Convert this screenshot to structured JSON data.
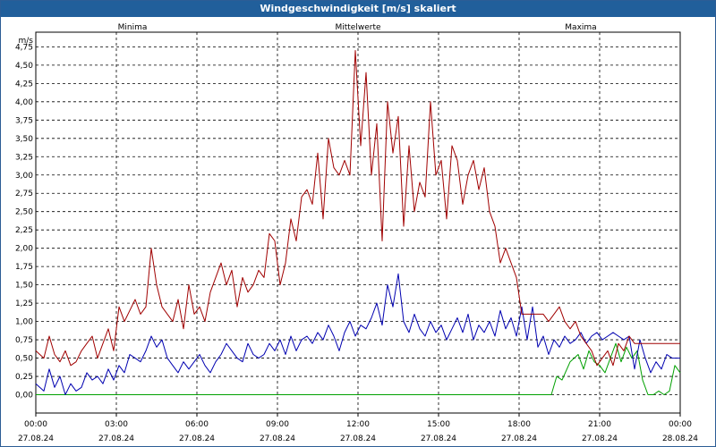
{
  "title": "Windgeschwindigkeit [m/s] skaliert",
  "colors": {
    "title_bg": "#215f9b",
    "minima": "#00a000",
    "mittelwerte": "#0000b0",
    "maxima": "#a00000",
    "grid": "#000000"
  },
  "chart_data": {
    "type": "line",
    "title": "Windgeschwindigkeit [m/s] skaliert",
    "ylabel": "m/s",
    "xlabel": "",
    "ylim": [
      -0.25,
      4.95
    ],
    "xlim_hours": [
      0,
      24
    ],
    "grid": true,
    "legend_placement": "top",
    "y_ticks": [
      "0,00",
      "0,25",
      "0,50",
      "0,75",
      "1,00",
      "1,25",
      "1,50",
      "1,75",
      "2,00",
      "2,25",
      "2,50",
      "2,75",
      "3,00",
      "3,25",
      "3,50",
      "3,75",
      "4,00",
      "4,25",
      "4,50",
      "4,75"
    ],
    "x_ticks": [
      {
        "time": "00:00",
        "date": "27.08.24"
      },
      {
        "time": "03:00",
        "date": "27.08.24"
      },
      {
        "time": "06:00",
        "date": "27.08.24"
      },
      {
        "time": "09:00",
        "date": "27.08.24"
      },
      {
        "time": "12:00",
        "date": "27.08.24"
      },
      {
        "time": "15:00",
        "date": "27.08.24"
      },
      {
        "time": "18:00",
        "date": "27.08.24"
      },
      {
        "time": "21:00",
        "date": "27.08.24"
      },
      {
        "time": "00:00",
        "date": "28.08.24"
      }
    ],
    "x_tick_hours": [
      0,
      3,
      6,
      9,
      12,
      15,
      18,
      21,
      24
    ],
    "series": [
      {
        "name": "Minima",
        "color": "#00a000",
        "x": [
          0,
          19.2,
          19.4,
          19.6,
          19.9,
          20.2,
          20.4,
          20.6,
          20.8,
          21.0,
          21.2,
          21.4,
          21.6,
          21.8,
          22.0,
          22.2,
          22.4,
          22.6,
          22.8,
          23.0,
          23.2,
          23.4,
          23.6,
          23.8,
          24.0
        ],
        "y": [
          0,
          0,
          0.25,
          0.2,
          0.45,
          0.55,
          0.35,
          0.6,
          0.45,
          0.4,
          0.3,
          0.5,
          0.7,
          0.45,
          0.65,
          0.5,
          0.6,
          0.2,
          0.0,
          0.0,
          0.05,
          0.0,
          0.05,
          0.4,
          0.3
        ]
      },
      {
        "name": "Mittelwerte",
        "color": "#0000b0",
        "x": [
          0,
          0.3,
          0.5,
          0.7,
          0.9,
          1.1,
          1.3,
          1.5,
          1.7,
          1.9,
          2.1,
          2.3,
          2.5,
          2.7,
          2.9,
          3.1,
          3.3,
          3.5,
          3.7,
          3.9,
          4.1,
          4.3,
          4.5,
          4.7,
          4.9,
          5.1,
          5.3,
          5.5,
          5.7,
          5.9,
          6.1,
          6.3,
          6.5,
          6.7,
          6.9,
          7.1,
          7.3,
          7.5,
          7.7,
          7.9,
          8.1,
          8.3,
          8.5,
          8.7,
          8.9,
          9.1,
          9.3,
          9.5,
          9.7,
          9.9,
          10.1,
          10.3,
          10.5,
          10.7,
          10.9,
          11.1,
          11.3,
          11.5,
          11.7,
          11.9,
          12.1,
          12.3,
          12.5,
          12.7,
          12.9,
          13.1,
          13.3,
          13.5,
          13.7,
          13.9,
          14.1,
          14.3,
          14.5,
          14.7,
          14.9,
          15.1,
          15.3,
          15.5,
          15.7,
          15.9,
          16.1,
          16.3,
          16.5,
          16.7,
          16.9,
          17.1,
          17.3,
          17.5,
          17.7,
          17.9,
          18.1,
          18.3,
          18.5,
          18.7,
          18.9,
          19.1,
          19.3,
          19.5,
          19.7,
          19.9,
          20.1,
          20.3,
          20.5,
          20.7,
          20.9,
          21.1,
          21.3,
          21.5,
          21.7,
          21.9,
          22.1,
          22.3,
          22.5,
          22.7,
          22.9,
          23.1,
          23.3,
          23.5,
          23.7,
          23.9,
          24.0
        ],
        "y": [
          0.15,
          0.05,
          0.35,
          0.1,
          0.25,
          0.0,
          0.15,
          0.05,
          0.1,
          0.3,
          0.2,
          0.25,
          0.15,
          0.35,
          0.2,
          0.4,
          0.3,
          0.55,
          0.5,
          0.45,
          0.6,
          0.8,
          0.65,
          0.75,
          0.5,
          0.4,
          0.3,
          0.45,
          0.35,
          0.45,
          0.55,
          0.4,
          0.3,
          0.45,
          0.55,
          0.7,
          0.6,
          0.5,
          0.45,
          0.7,
          0.55,
          0.5,
          0.55,
          0.7,
          0.6,
          0.75,
          0.55,
          0.8,
          0.6,
          0.75,
          0.8,
          0.7,
          0.85,
          0.75,
          0.95,
          0.8,
          0.6,
          0.85,
          1.0,
          0.8,
          0.95,
          0.9,
          1.05,
          1.25,
          0.95,
          1.5,
          1.2,
          1.65,
          1.0,
          0.85,
          1.1,
          0.9,
          0.8,
          1.0,
          0.85,
          0.95,
          0.75,
          0.9,
          1.05,
          0.85,
          1.1,
          0.75,
          0.95,
          0.85,
          1.0,
          0.8,
          1.15,
          0.9,
          1.05,
          0.8,
          1.2,
          0.75,
          1.2,
          0.65,
          0.8,
          0.55,
          0.75,
          0.65,
          0.8,
          0.7,
          0.75,
          0.85,
          0.7,
          0.8,
          0.85,
          0.75,
          0.8,
          0.85,
          0.8,
          0.75,
          0.8,
          0.35,
          0.75,
          0.5,
          0.3,
          0.45,
          0.35,
          0.55,
          0.5,
          0.5,
          0.5
        ]
      },
      {
        "name": "Maxima",
        "color": "#a00000",
        "x": [
          0,
          0.3,
          0.5,
          0.7,
          0.9,
          1.1,
          1.3,
          1.5,
          1.7,
          1.9,
          2.1,
          2.3,
          2.5,
          2.7,
          2.9,
          3.1,
          3.3,
          3.5,
          3.7,
          3.9,
          4.1,
          4.3,
          4.5,
          4.7,
          4.9,
          5.1,
          5.3,
          5.5,
          5.7,
          5.9,
          6.1,
          6.3,
          6.5,
          6.7,
          6.9,
          7.1,
          7.3,
          7.5,
          7.7,
          7.9,
          8.1,
          8.3,
          8.5,
          8.7,
          8.9,
          9.1,
          9.3,
          9.5,
          9.7,
          9.9,
          10.1,
          10.3,
          10.5,
          10.7,
          10.9,
          11.1,
          11.3,
          11.5,
          11.7,
          11.9,
          12.1,
          12.3,
          12.5,
          12.7,
          12.9,
          13.1,
          13.3,
          13.5,
          13.7,
          13.9,
          14.1,
          14.3,
          14.5,
          14.7,
          14.9,
          15.1,
          15.3,
          15.5,
          15.7,
          15.9,
          16.1,
          16.3,
          16.5,
          16.7,
          16.9,
          17.1,
          17.3,
          17.5,
          17.7,
          17.9,
          18.1,
          18.3,
          18.5,
          18.7,
          18.9,
          19.1,
          19.3,
          19.5,
          19.7,
          19.9,
          20.1,
          20.3,
          20.5,
          20.7,
          20.9,
          21.1,
          21.3,
          21.5,
          21.7,
          21.9,
          22.1,
          22.3,
          22.5,
          22.7,
          22.9,
          23.1,
          23.3,
          23.5,
          23.7,
          23.9,
          24.0
        ],
        "y": [
          0.6,
          0.5,
          0.8,
          0.55,
          0.45,
          0.6,
          0.4,
          0.45,
          0.6,
          0.7,
          0.8,
          0.5,
          0.7,
          0.9,
          0.6,
          1.2,
          1.0,
          1.15,
          1.3,
          1.1,
          1.2,
          2.0,
          1.5,
          1.2,
          1.1,
          1.0,
          1.3,
          0.9,
          1.5,
          1.1,
          1.2,
          1.0,
          1.4,
          1.6,
          1.8,
          1.5,
          1.7,
          1.2,
          1.6,
          1.4,
          1.5,
          1.7,
          1.6,
          2.2,
          2.1,
          1.5,
          1.8,
          2.4,
          2.1,
          2.7,
          2.8,
          2.6,
          3.3,
          2.4,
          3.5,
          3.1,
          3.0,
          3.2,
          3.0,
          4.7,
          3.4,
          4.4,
          3.0,
          3.7,
          2.1,
          4.0,
          3.3,
          3.8,
          2.3,
          3.4,
          2.5,
          2.9,
          2.7,
          4.0,
          3.0,
          3.2,
          2.4,
          3.4,
          3.2,
          2.6,
          3.0,
          3.2,
          2.8,
          3.1,
          2.5,
          2.3,
          1.8,
          2.0,
          1.8,
          1.6,
          1.1,
          1.1,
          1.1,
          1.1,
          1.1,
          1.0,
          1.1,
          1.2,
          1.0,
          0.9,
          1.0,
          0.8,
          0.7,
          0.6,
          0.4,
          0.5,
          0.6,
          0.4,
          0.7,
          0.6,
          0.8,
          0.7,
          0.7,
          0.7,
          0.7,
          0.7,
          0.7,
          0.7,
          0.7,
          0.7,
          0.7
        ]
      }
    ]
  }
}
